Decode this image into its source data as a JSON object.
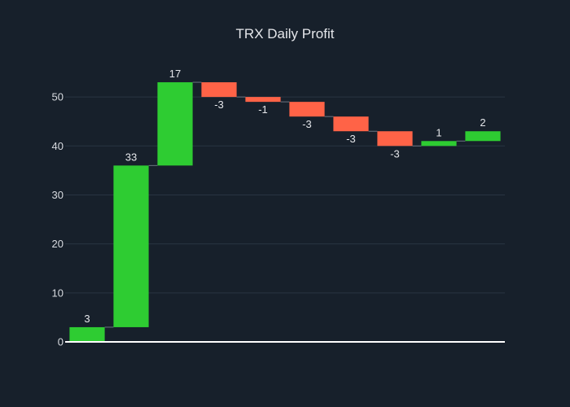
{
  "chart_data": {
    "type": "waterfall",
    "title": "TRX Daily Profit",
    "xlabel": "",
    "ylabel": "",
    "categories": [
      "",
      "",
      "",
      "",
      "",
      "",
      "",
      "",
      "",
      ""
    ],
    "values": [
      3,
      33,
      17,
      -3,
      -1,
      -3,
      -3,
      -3,
      1,
      2
    ],
    "data_labels": [
      "3",
      "33",
      "17",
      "-3",
      "-1",
      "-3",
      "-3",
      "-3",
      "1",
      "2"
    ],
    "ylim": [
      0,
      56.5
    ],
    "yticks": [
      0,
      10,
      20,
      30,
      40,
      50
    ],
    "grid": true,
    "increase_color": "#2ecc32",
    "decrease_color": "#ff6347",
    "connector_color": "#6b7480",
    "grid_color": "#283442",
    "zero_line_color": "#ffffff"
  }
}
